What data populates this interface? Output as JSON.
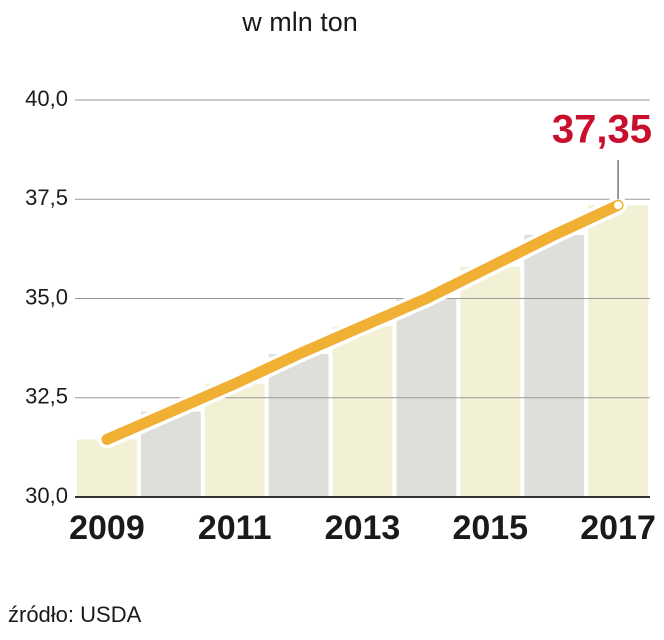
{
  "chart_data": {
    "type": "line",
    "title": "w mln ton",
    "source": "źródło: USDA",
    "categories": [
      "2009",
      null,
      "2011",
      null,
      "2013",
      null,
      "2015",
      null,
      "2017"
    ],
    "series": [
      {
        "color": "#f0b034",
        "values": [
          31.45,
          32.15,
          32.85,
          33.6,
          34.3,
          35.0,
          35.8,
          36.6,
          37.35
        ],
        "value_labels": [
          null,
          null,
          null,
          null,
          null,
          null,
          null,
          null,
          "37,35"
        ]
      }
    ],
    "bar_colors": [
      "#f2f0d5",
      "#dededa"
    ],
    "label_color": "#c8102e",
    "ylim": [
      30,
      40
    ],
    "yticks": [
      {
        "value": 30,
        "label": "30,0"
      },
      {
        "value": 32.5,
        "label": "32,5"
      },
      {
        "value": 35,
        "label": "35,0"
      },
      {
        "value": 37.5,
        "label": "37,5"
      },
      {
        "value": 40,
        "label": "40,0"
      }
    ],
    "grid": true
  }
}
